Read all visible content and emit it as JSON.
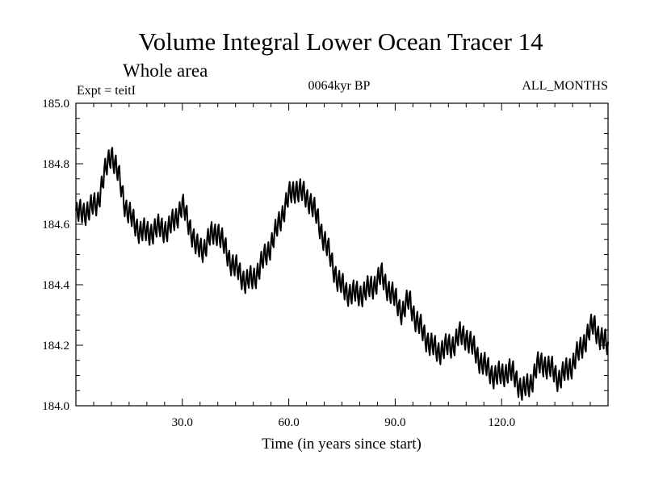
{
  "chart_data": {
    "type": "line",
    "title": "Volume Integral Lower Ocean Tracer 14",
    "subtitle": "Whole area",
    "experiment": "Expt = teitI",
    "period": "0064kyr BP",
    "months": "ALL_MONTHS",
    "xlabel": "Time (in years since start)",
    "ylabel": "",
    "xlim": [
      0,
      150
    ],
    "ylim": [
      184.0,
      185.0
    ],
    "x_ticks": [
      30,
      60,
      90,
      120
    ],
    "x_tick_labels": [
      "30.0",
      "60.0",
      "90.0",
      "120.0"
    ],
    "y_ticks": [
      184.0,
      184.2,
      184.4,
      184.6,
      184.8,
      185.0
    ],
    "y_tick_labels": [
      "184.0",
      "184.2",
      "184.4",
      "184.6",
      "184.8",
      "185.0"
    ],
    "series": [
      {
        "name": "Volume integral (whole area)",
        "color": "#000000",
        "trend_points": [
          [
            0,
            184.63
          ],
          [
            2,
            184.64
          ],
          [
            4,
            184.65
          ],
          [
            6,
            184.67
          ],
          [
            8,
            184.76
          ],
          [
            10,
            184.84
          ],
          [
            12,
            184.76
          ],
          [
            14,
            184.66
          ],
          [
            16,
            184.61
          ],
          [
            18,
            184.58
          ],
          [
            20,
            184.57
          ],
          [
            22,
            184.58
          ],
          [
            24,
            184.59
          ],
          [
            26,
            184.58
          ],
          [
            28,
            184.62
          ],
          [
            30,
            184.66
          ],
          [
            32,
            184.6
          ],
          [
            34,
            184.52
          ],
          [
            36,
            184.52
          ],
          [
            38,
            184.56
          ],
          [
            40,
            184.58
          ],
          [
            42,
            184.52
          ],
          [
            44,
            184.47
          ],
          [
            46,
            184.44
          ],
          [
            48,
            184.41
          ],
          [
            50,
            184.42
          ],
          [
            52,
            184.46
          ],
          [
            54,
            184.51
          ],
          [
            56,
            184.56
          ],
          [
            58,
            184.63
          ],
          [
            60,
            184.69
          ],
          [
            62,
            184.72
          ],
          [
            64,
            184.7
          ],
          [
            66,
            184.68
          ],
          [
            68,
            184.62
          ],
          [
            70,
            184.55
          ],
          [
            72,
            184.48
          ],
          [
            74,
            184.41
          ],
          [
            76,
            184.38
          ],
          [
            78,
            184.37
          ],
          [
            80,
            184.37
          ],
          [
            82,
            184.38
          ],
          [
            84,
            184.4
          ],
          [
            86,
            184.43
          ],
          [
            88,
            184.39
          ],
          [
            90,
            184.35
          ],
          [
            92,
            184.31
          ],
          [
            94,
            184.35
          ],
          [
            96,
            184.28
          ],
          [
            98,
            184.24
          ],
          [
            100,
            184.2
          ],
          [
            102,
            184.18
          ],
          [
            104,
            184.19
          ],
          [
            106,
            184.2
          ],
          [
            108,
            184.23
          ],
          [
            110,
            184.23
          ],
          [
            112,
            184.19
          ],
          [
            114,
            184.15
          ],
          [
            116,
            184.12
          ],
          [
            118,
            184.1
          ],
          [
            120,
            184.1
          ],
          [
            122,
            184.12
          ],
          [
            124,
            184.09
          ],
          [
            126,
            184.05
          ],
          [
            128,
            184.07
          ],
          [
            130,
            184.13
          ],
          [
            132,
            184.14
          ],
          [
            134,
            184.12
          ],
          [
            136,
            184.09
          ],
          [
            138,
            184.11
          ],
          [
            140,
            184.14
          ],
          [
            142,
            184.18
          ],
          [
            144,
            184.23
          ],
          [
            146,
            184.27
          ],
          [
            148,
            184.22
          ],
          [
            150,
            184.2
          ]
        ],
        "oscillation_amplitude": 0.038,
        "oscillation_period_years": 1
      }
    ]
  }
}
